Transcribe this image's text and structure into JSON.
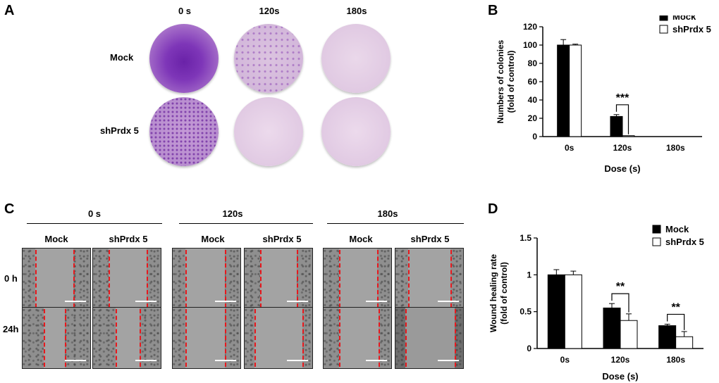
{
  "panel_letters": {
    "a": "A",
    "b": "B",
    "c": "C",
    "d": "D"
  },
  "panel_a": {
    "columns": [
      "0 s",
      "120s",
      "180s"
    ],
    "rows": [
      "Mock",
      "shPrdx 5"
    ]
  },
  "panel_c": {
    "groups": [
      "0 s",
      "120s",
      "180s"
    ],
    "subheads": [
      "Mock",
      "shPrdx 5"
    ],
    "rows": [
      "0 h",
      "24h"
    ]
  },
  "colors": {
    "mock": "#000000",
    "shprdx5": "#ffffff",
    "stain": "#8a3fb8",
    "dish": "#e6d2e6",
    "wound_line": "#e8181d"
  },
  "chart_data": [
    {
      "type": "bar",
      "panel": "B",
      "categories": [
        "0s",
        "120s",
        "180s"
      ],
      "series": [
        {
          "name": "Mock",
          "values": [
            100,
            22,
            0
          ],
          "errors": [
            6,
            2,
            0
          ]
        },
        {
          "name": "shPrdx 5",
          "values": [
            100,
            1,
            0
          ],
          "errors": [
            1,
            0,
            0
          ]
        }
      ],
      "annotations": [
        {
          "category": "120s",
          "text": "***"
        }
      ],
      "xlabel": "Dose (s)",
      "ylabel": "Numbers of colonies",
      "ylabel2": "(fold of control)",
      "ylim": [
        0,
        120
      ],
      "yticks": [
        0,
        20,
        40,
        60,
        80,
        100,
        120
      ],
      "legend": "top-right"
    },
    {
      "type": "bar",
      "panel": "D",
      "categories": [
        "0s",
        "120s",
        "180s"
      ],
      "series": [
        {
          "name": "Mock",
          "values": [
            1.0,
            0.55,
            0.31
          ],
          "errors": [
            0.07,
            0.06,
            0.02
          ]
        },
        {
          "name": "shPrdx 5",
          "values": [
            1.0,
            0.38,
            0.16
          ],
          "errors": [
            0.05,
            0.09,
            0.07
          ]
        }
      ],
      "annotations": [
        {
          "category": "120s",
          "text": "**"
        },
        {
          "category": "180s",
          "text": "**"
        }
      ],
      "xlabel": "Dose (s)",
      "ylabel": "Wound healing rate",
      "ylabel2": "(fold of control)",
      "ylim": [
        0,
        1.5
      ],
      "yticks": [
        0,
        0.5,
        1,
        1.5
      ],
      "yticklabels": [
        "0",
        "0.5",
        "1",
        "1.5"
      ],
      "legend": "top-right"
    }
  ]
}
